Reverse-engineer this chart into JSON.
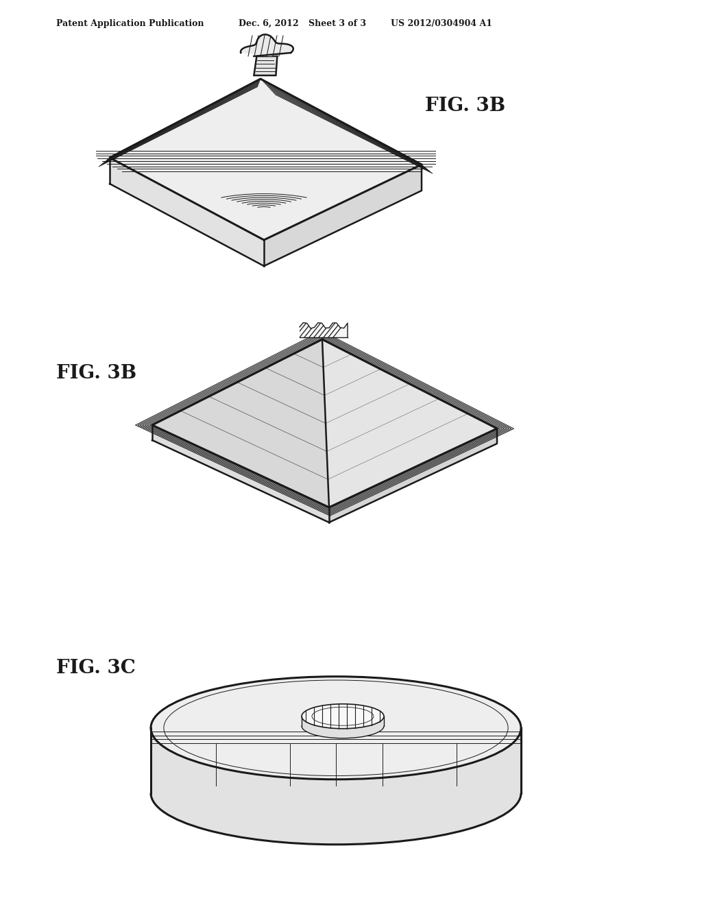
{
  "background_color": "#ffffff",
  "header_text": "Patent Application Publication",
  "header_date": "Dec. 6, 2012",
  "header_sheet": "Sheet 3 of 3",
  "header_patent": "US 2012/0304904 A1",
  "fig_label_3b_top": "FIG. 3B",
  "fig_label_3b_bottom": "FIG. 3B",
  "fig_label_3c": "FIG. 3C",
  "line_color": "#1a1a1a",
  "fill_top_face": "#f2f2f2",
  "fill_side_light": "#e0e0e0",
  "fill_side_dark": "#c8c8c8",
  "fill_white": "#ffffff",
  "fill_hatch_bg": "#f8f8f8"
}
